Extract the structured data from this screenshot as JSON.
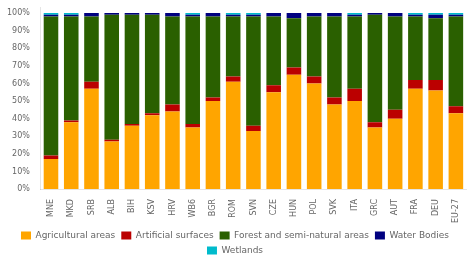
{
  "chart_data": {
    "type": "bar",
    "stacked": true,
    "grid": false,
    "legend": "bottom",
    "categories": [
      "MNE",
      "MKD",
      "SRB",
      "ALB",
      "BIH",
      "KSV",
      "HRV",
      "WB6",
      "BGR",
      "ROM",
      "SVN",
      "CZE",
      "HUN",
      "POL",
      "SVK",
      "ITA",
      "GRC",
      "AUT",
      "FRA",
      "DEU",
      "EU-27"
    ],
    "series": [
      {
        "name": "Agricultural areas",
        "color": "#FFA500",
        "values": [
          17,
          38,
          57,
          27,
          36,
          42,
          44,
          35,
          50,
          61,
          33,
          55,
          65,
          60,
          48,
          50,
          35,
          40,
          57,
          56,
          43
        ]
      },
      {
        "name": "Artificial surfaces",
        "color": "#BB0000",
        "values": [
          2,
          1,
          4,
          1,
          1,
          1,
          4,
          2,
          2,
          3,
          3,
          4,
          4,
          4,
          4,
          7,
          3,
          5,
          5,
          6,
          4
        ]
      },
      {
        "name": "Forest and semi-natural areas",
        "color": "#2A6000",
        "values": [
          79,
          59,
          37,
          71,
          62,
          56,
          50,
          61,
          46,
          34,
          62,
          39,
          28,
          34,
          46,
          41,
          61,
          53,
          36,
          35,
          51
        ]
      },
      {
        "name": "Water Bodies",
        "color": "#000080",
        "values": [
          1,
          1,
          2,
          1,
          1,
          1,
          2,
          1,
          2,
          1,
          1,
          2,
          3,
          2,
          2,
          1,
          1,
          2,
          1,
          2,
          1
        ]
      },
      {
        "name": "Wetlands",
        "color": "#00BBCC",
        "values": [
          1,
          1,
          0,
          0,
          0,
          0,
          0,
          1,
          0,
          1,
          1,
          0,
          0,
          0,
          0,
          1,
          0,
          0,
          1,
          1,
          1
        ]
      }
    ],
    "ylim": [
      0,
      103
    ],
    "yticks": [
      {
        "value": 0,
        "label": "0%"
      },
      {
        "value": 10,
        "label": "10%"
      },
      {
        "value": 20,
        "label": "20%"
      },
      {
        "value": 30,
        "label": "30%"
      },
      {
        "value": 40,
        "label": "40%"
      },
      {
        "value": 50,
        "label": "50%"
      },
      {
        "value": 60,
        "label": "60%"
      },
      {
        "value": 70,
        "label": "70%"
      },
      {
        "value": 80,
        "label": "80%"
      },
      {
        "value": 90,
        "label": "90%"
      },
      {
        "value": 100,
        "label": "100%"
      }
    ]
  }
}
